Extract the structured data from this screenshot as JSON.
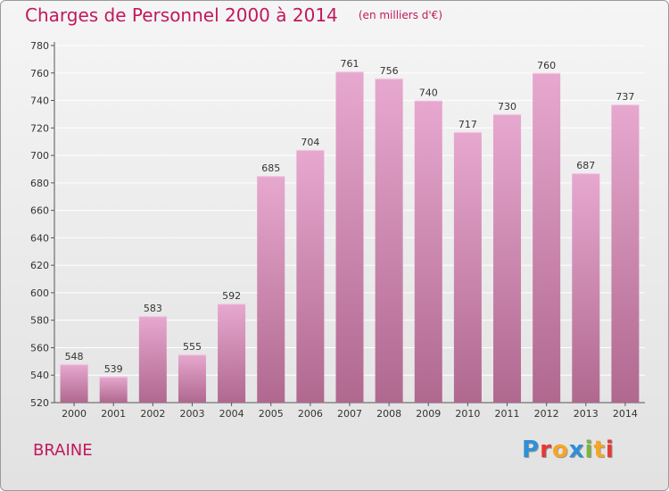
{
  "chart_data": {
    "type": "bar",
    "title": "Charges de Personnel 2000 à 2014",
    "subtitle": "(en milliers d'€)",
    "categories": [
      "2000",
      "2001",
      "2002",
      "2003",
      "2004",
      "2005",
      "2006",
      "2007",
      "2008",
      "2009",
      "2010",
      "2011",
      "2012",
      "2013",
      "2014"
    ],
    "values": [
      548,
      539,
      583,
      555,
      592,
      685,
      704,
      761,
      756,
      740,
      717,
      730,
      760,
      687,
      737
    ],
    "ylim": [
      520,
      780
    ],
    "yticks": [
      520,
      540,
      560,
      580,
      600,
      620,
      640,
      660,
      680,
      700,
      720,
      740,
      760,
      780
    ],
    "xlabel": "",
    "ylabel": "",
    "grid": true,
    "bar_color": "#d47fb0"
  },
  "footer": {
    "commune": "BRAINE",
    "logo_letters": [
      "P",
      "r",
      "o",
      "x",
      "i",
      "t",
      "i"
    ],
    "logo_colors": [
      "#2f8fd6",
      "#e53935",
      "#f5a623",
      "#2f8fd6",
      "#7cb342",
      "#f5a623",
      "#e53935"
    ]
  }
}
